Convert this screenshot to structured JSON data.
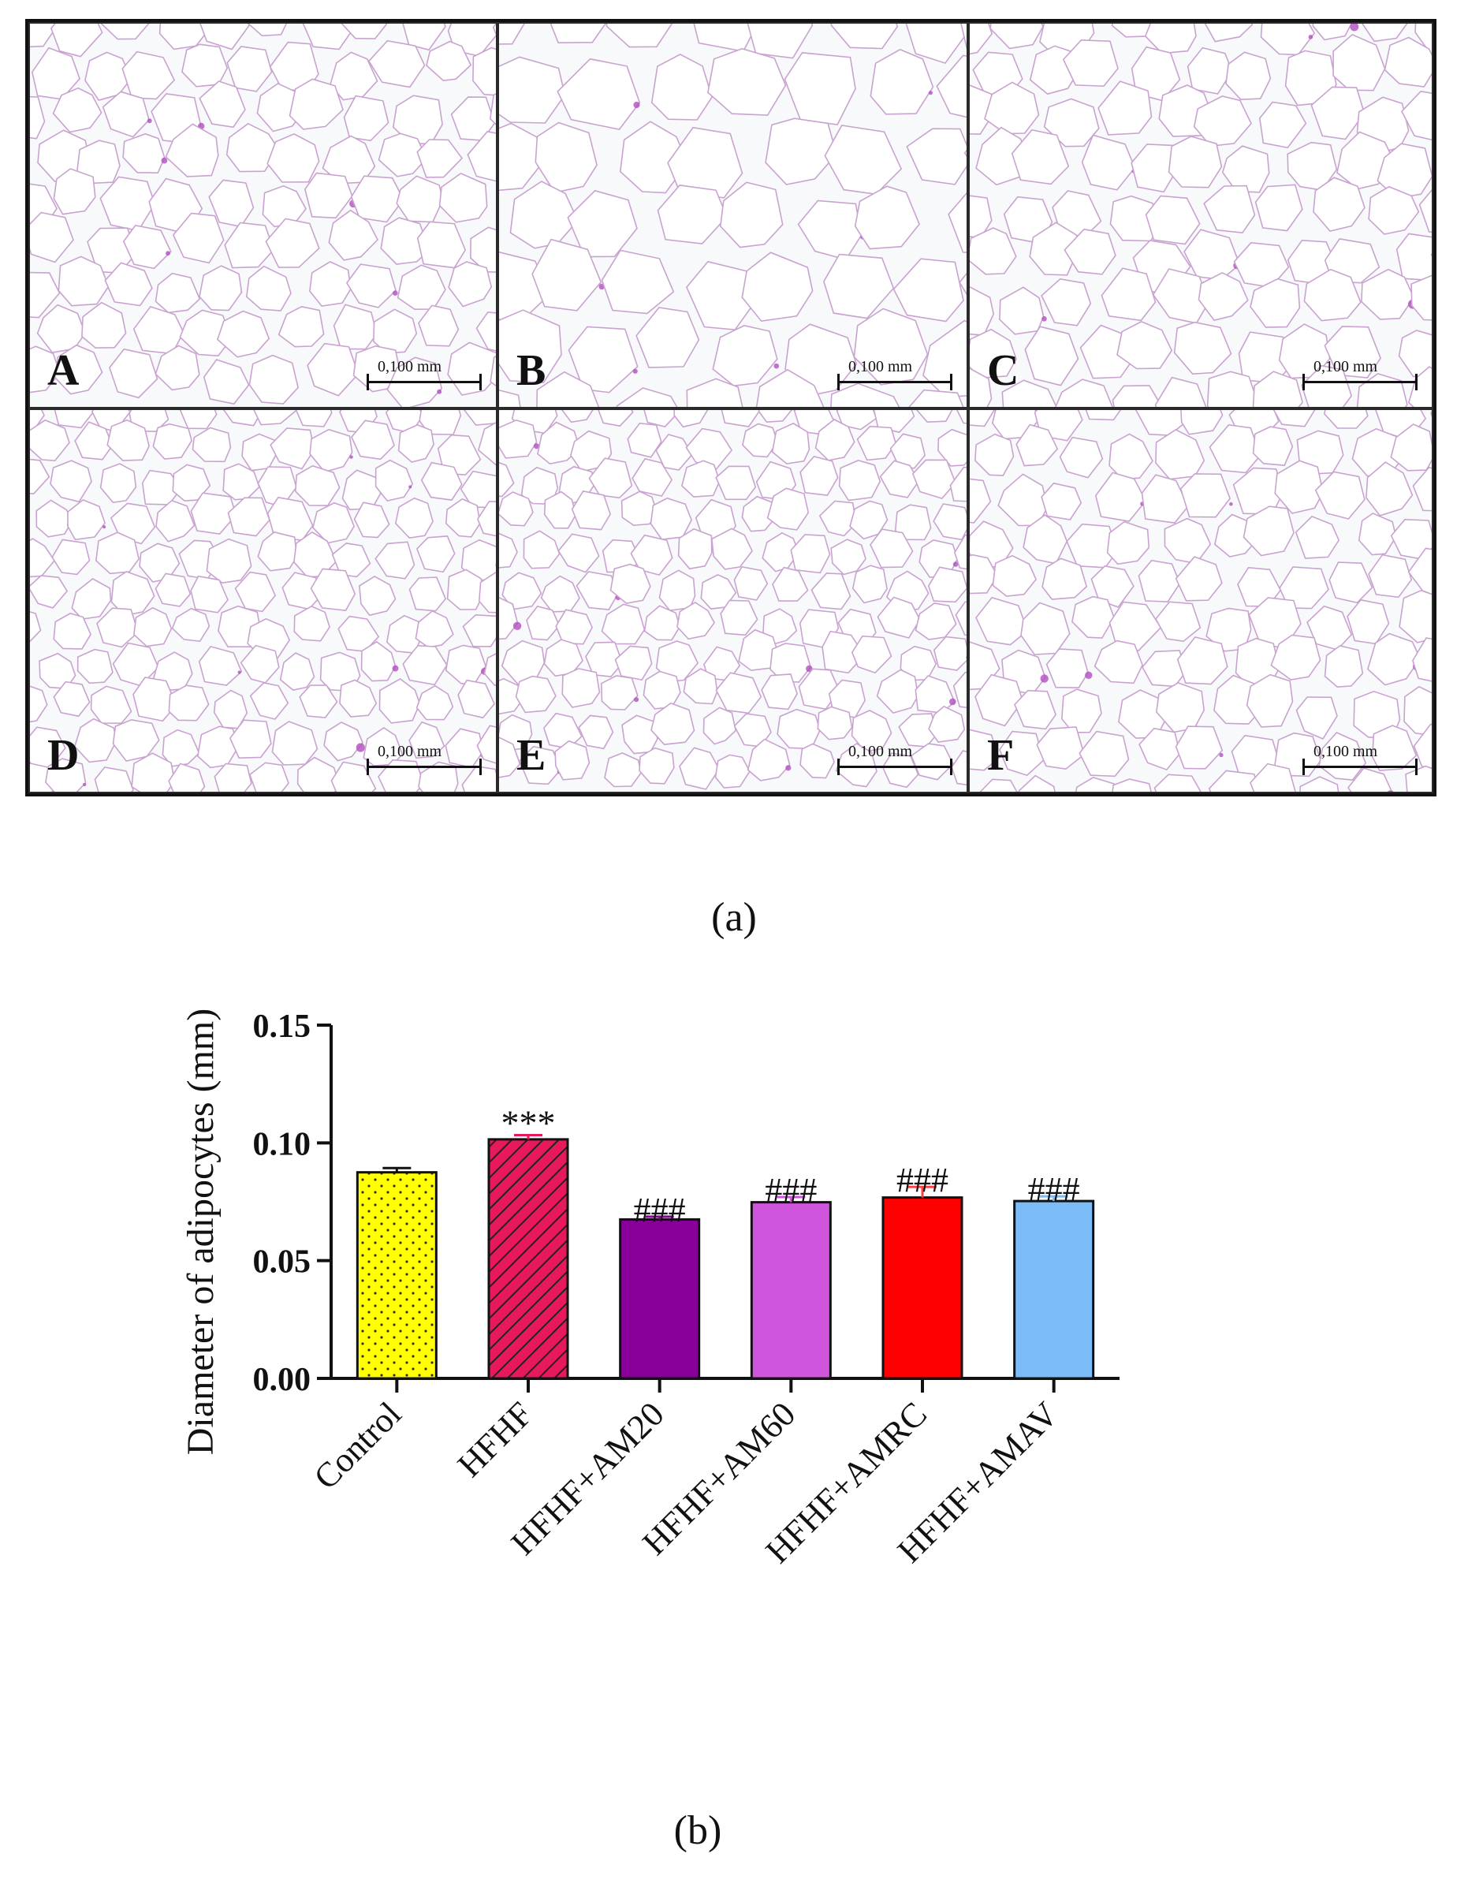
{
  "panel_a": {
    "panels": [
      {
        "letter": "A",
        "scale_label": "0,100 mm"
      },
      {
        "letter": "B",
        "scale_label": "0,100 mm"
      },
      {
        "letter": "C",
        "scale_label": "0,100 mm"
      },
      {
        "letter": "D",
        "scale_label": "0,100 mm"
      },
      {
        "letter": "E",
        "scale_label": "0,100 mm"
      },
      {
        "letter": "F",
        "scale_label": "0,100 mm"
      }
    ],
    "caption": "(a)"
  },
  "panel_b": {
    "caption": "(b)"
  },
  "chart_data": {
    "type": "bar",
    "title": "",
    "ylabel": "Diameter of adipocytes (mm)",
    "xlabel": "",
    "ylim": [
      0,
      0.15
    ],
    "yticks": [
      "0.00",
      "0.05",
      "0.10",
      "0.15"
    ],
    "categories": [
      "Control",
      "HFHF",
      "HFHF+AM20",
      "HFHF+AM60",
      "HFHF+AMRC",
      "HFHF+AMAV"
    ],
    "values": [
      0.0875,
      0.1015,
      0.0675,
      0.0748,
      0.0768,
      0.0753
    ],
    "errors": [
      0.0018,
      0.0018,
      0.0012,
      0.0022,
      0.0045,
      0.002
    ],
    "annotations": [
      "",
      "***",
      "###",
      "###",
      "###",
      "###"
    ],
    "colors": [
      "#ffff00",
      "#e8195a",
      "#880099",
      "#d055dd",
      "#ff0000",
      "#7bbcf8"
    ],
    "error_colors": [
      "#111111",
      "#e8195a",
      "#880099",
      "#d055dd",
      "#ff4040",
      "#7bbcf8"
    ],
    "patterns": [
      "dots",
      "hatch",
      "solid",
      "solid",
      "solid",
      "solid"
    ]
  }
}
